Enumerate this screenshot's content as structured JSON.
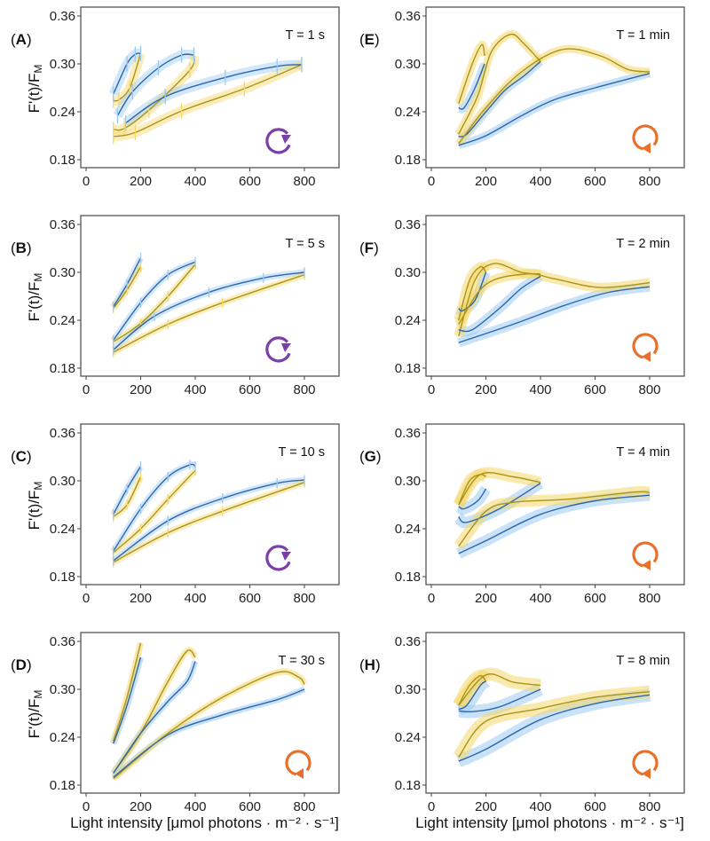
{
  "chart_data": [
    {
      "type": "line",
      "panel": "A",
      "title": "T = 1 s",
      "cycle_direction": "counterclockwise",
      "cycle_icon_color": "#7b3fa8",
      "uncertainty_style": "error-bars",
      "band": 0.006,
      "loops": [
        {
          "blue": [
            [
              100,
              0.262
            ],
            [
              150,
              0.3
            ],
            [
              180,
              0.312
            ],
            [
              200,
              0.313
            ]
          ],
          "yellow": [
            [
              100,
              0.254
            ],
            [
              120,
              0.255
            ],
            [
              160,
              0.27
            ],
            [
              200,
              0.313
            ]
          ]
        },
        {
          "blue": [
            [
              115,
              0.235
            ],
            [
              170,
              0.265
            ],
            [
              265,
              0.295
            ],
            [
              350,
              0.311
            ],
            [
              395,
              0.311
            ]
          ],
          "yellow": [
            [
              100,
              0.218
            ],
            [
              140,
              0.219
            ],
            [
              230,
              0.242
            ],
            [
              380,
              0.292
            ],
            [
              395,
              0.311
            ]
          ]
        },
        {
          "blue": [
            [
              145,
              0.226
            ],
            [
              290,
              0.259
            ],
            [
              510,
              0.283
            ],
            [
              700,
              0.297
            ],
            [
              790,
              0.299
            ]
          ],
          "yellow": [
            [
              100,
              0.209
            ],
            [
              180,
              0.214
            ],
            [
              350,
              0.241
            ],
            [
              580,
              0.269
            ],
            [
              790,
              0.299
            ]
          ]
        }
      ]
    },
    {
      "type": "line",
      "panel": "B",
      "title": "T = 5 s",
      "cycle_direction": "counterclockwise",
      "cycle_icon_color": "#7b3fa8",
      "uncertainty_style": "error-bars",
      "band": 0.004,
      "loops": [
        {
          "blue": [
            [
              100,
              0.257
            ],
            [
              150,
              0.285
            ],
            [
              200,
              0.318
            ]
          ],
          "yellow": [
            [
              100,
              0.255
            ],
            [
              150,
              0.278
            ],
            [
              200,
              0.307
            ]
          ]
        },
        {
          "blue": [
            [
              100,
              0.215
            ],
            [
              200,
              0.262
            ],
            [
              300,
              0.297
            ],
            [
              400,
              0.313
            ]
          ],
          "yellow": [
            [
              100,
              0.213
            ],
            [
              200,
              0.236
            ],
            [
              300,
              0.27
            ],
            [
              400,
              0.31
            ]
          ]
        },
        {
          "blue": [
            [
              100,
              0.203
            ],
            [
              250,
              0.245
            ],
            [
              450,
              0.275
            ],
            [
              650,
              0.293
            ],
            [
              800,
              0.3
            ]
          ],
          "yellow": [
            [
              100,
              0.2
            ],
            [
              300,
              0.235
            ],
            [
              500,
              0.262
            ],
            [
              800,
              0.297
            ]
          ]
        }
      ]
    },
    {
      "type": "line",
      "panel": "C",
      "title": "T = 10 s",
      "cycle_direction": "counterclockwise",
      "cycle_icon_color": "#7b3fa8",
      "uncertainty_style": "error-bars",
      "band": 0.004,
      "loops": [
        {
          "blue": [
            [
              100,
              0.258
            ],
            [
              150,
              0.29
            ],
            [
              200,
              0.318
            ]
          ],
          "yellow": [
            [
              100,
              0.255
            ],
            [
              150,
              0.27
            ],
            [
              200,
              0.305
            ]
          ]
        },
        {
          "blue": [
            [
              100,
              0.212
            ],
            [
              200,
              0.265
            ],
            [
              300,
              0.305
            ],
            [
              380,
              0.32
            ],
            [
              400,
              0.318
            ]
          ],
          "yellow": [
            [
              100,
              0.21
            ],
            [
              200,
              0.24
            ],
            [
              300,
              0.277
            ],
            [
              400,
              0.313
            ]
          ]
        },
        {
          "blue": [
            [
              100,
              0.2
            ],
            [
              300,
              0.25
            ],
            [
              500,
              0.278
            ],
            [
              700,
              0.297
            ],
            [
              800,
              0.301
            ]
          ],
          "yellow": [
            [
              100,
              0.198
            ],
            [
              300,
              0.235
            ],
            [
              500,
              0.262
            ],
            [
              800,
              0.298
            ]
          ]
        }
      ]
    },
    {
      "type": "line",
      "panel": "D",
      "title": "T = 30 s",
      "cycle_direction": "clockwise",
      "cycle_icon_color": "#e8702a",
      "uncertainty_style": "bands",
      "band": 0.004,
      "loops": [
        {
          "blue": [
            [
              100,
              0.232
            ],
            [
              150,
              0.28
            ],
            [
              200,
              0.34
            ]
          ],
          "yellow": [
            [
              100,
              0.235
            ],
            [
              150,
              0.29
            ],
            [
              200,
              0.358
            ]
          ]
        },
        {
          "blue": [
            [
              100,
              0.195
            ],
            [
              200,
              0.245
            ],
            [
              300,
              0.285
            ],
            [
              370,
              0.31
            ],
            [
              400,
              0.335
            ]
          ],
          "yellow": [
            [
              100,
              0.195
            ],
            [
              200,
              0.245
            ],
            [
              300,
              0.31
            ],
            [
              370,
              0.348
            ],
            [
              400,
              0.34
            ]
          ]
        },
        {
          "blue": [
            [
              100,
              0.19
            ],
            [
              300,
              0.243
            ],
            [
              500,
              0.268
            ],
            [
              700,
              0.287
            ],
            [
              800,
              0.3
            ]
          ],
          "yellow": [
            [
              100,
              0.188
            ],
            [
              300,
              0.245
            ],
            [
              500,
              0.29
            ],
            [
              700,
              0.321
            ],
            [
              780,
              0.315
            ],
            [
              800,
              0.306
            ]
          ]
        }
      ]
    },
    {
      "type": "line",
      "panel": "E",
      "title": "T = 1 min",
      "cycle_direction": "clockwise",
      "cycle_icon_color": "#e8702a",
      "uncertainty_style": "bands",
      "band": 0.005,
      "loops": [
        {
          "blue": [
            [
              100,
              0.245
            ],
            [
              120,
              0.245
            ],
            [
              160,
              0.27
            ],
            [
              195,
              0.3
            ]
          ],
          "yellow": [
            [
              100,
              0.25
            ],
            [
              150,
              0.3
            ],
            [
              185,
              0.324
            ],
            [
              195,
              0.31
            ]
          ]
        },
        {
          "blue": [
            [
              100,
              0.209
            ],
            [
              130,
              0.212
            ],
            [
              200,
              0.24
            ],
            [
              270,
              0.267
            ],
            [
              340,
              0.285
            ],
            [
              400,
              0.303
            ]
          ],
          "yellow": [
            [
              100,
              0.212
            ],
            [
              170,
              0.26
            ],
            [
              220,
              0.315
            ],
            [
              290,
              0.337
            ],
            [
              340,
              0.325
            ],
            [
              400,
              0.303
            ]
          ]
        },
        {
          "blue": [
            [
              100,
              0.198
            ],
            [
              200,
              0.21
            ],
            [
              330,
              0.235
            ],
            [
              450,
              0.255
            ],
            [
              600,
              0.27
            ],
            [
              800,
              0.288
            ]
          ],
          "yellow": [
            [
              100,
              0.2
            ],
            [
              200,
              0.245
            ],
            [
              330,
              0.29
            ],
            [
              480,
              0.318
            ],
            [
              620,
              0.31
            ],
            [
              720,
              0.293
            ],
            [
              800,
              0.29
            ]
          ]
        }
      ]
    },
    {
      "type": "line",
      "panel": "F",
      "title": "T = 2 min",
      "cycle_direction": "clockwise",
      "cycle_icon_color": "#e8702a",
      "uncertainty_style": "bands",
      "band": 0.006,
      "loops": [
        {
          "blue": [
            [
              100,
              0.255
            ],
            [
              115,
              0.252
            ],
            [
              160,
              0.265
            ],
            [
              200,
              0.3
            ]
          ],
          "yellow": [
            [
              100,
              0.24
            ],
            [
              140,
              0.29
            ],
            [
              180,
              0.307
            ],
            [
              200,
              0.3
            ]
          ]
        },
        {
          "blue": [
            [
              100,
              0.228
            ],
            [
              150,
              0.228
            ],
            [
              250,
              0.255
            ],
            [
              330,
              0.28
            ],
            [
              400,
              0.295
            ]
          ],
          "yellow": [
            [
              100,
              0.22
            ],
            [
              160,
              0.29
            ],
            [
              230,
              0.311
            ],
            [
              330,
              0.3
            ],
            [
              400,
              0.298
            ]
          ]
        },
        {
          "blue": [
            [
              100,
              0.212
            ],
            [
              300,
              0.235
            ],
            [
              500,
              0.26
            ],
            [
              650,
              0.275
            ],
            [
              800,
              0.282
            ]
          ],
          "yellow": [
            [
              100,
              0.235
            ],
            [
              200,
              0.285
            ],
            [
              350,
              0.298
            ],
            [
              450,
              0.292
            ],
            [
              620,
              0.281
            ],
            [
              800,
              0.287
            ]
          ]
        }
      ]
    },
    {
      "type": "line",
      "panel": "G",
      "title": "T = 4 min",
      "cycle_direction": "clockwise",
      "cycle_icon_color": "#e8702a",
      "uncertainty_style": "bands",
      "band": 0.007,
      "loops": [
        {
          "blue": [
            [
              100,
              0.268
            ],
            [
              120,
              0.265
            ],
            [
              170,
              0.275
            ],
            [
              200,
              0.29
            ]
          ],
          "yellow": [
            [
              100,
              0.27
            ],
            [
              140,
              0.3
            ],
            [
              180,
              0.308
            ],
            [
              200,
              0.305
            ]
          ]
        },
        {
          "blue": [
            [
              100,
              0.255
            ],
            [
              130,
              0.248
            ],
            [
              250,
              0.265
            ],
            [
              400,
              0.297
            ]
          ],
          "yellow": [
            [
              100,
              0.27
            ],
            [
              180,
              0.308
            ],
            [
              300,
              0.305
            ],
            [
              400,
              0.298
            ]
          ]
        },
        {
          "blue": [
            [
              100,
              0.209
            ],
            [
              200,
              0.225
            ],
            [
              400,
              0.258
            ],
            [
              600,
              0.275
            ],
            [
              800,
              0.282
            ]
          ],
          "yellow": [
            [
              100,
              0.218
            ],
            [
              200,
              0.262
            ],
            [
              300,
              0.273
            ],
            [
              500,
              0.277
            ],
            [
              750,
              0.286
            ],
            [
              800,
              0.285
            ]
          ]
        }
      ]
    },
    {
      "type": "line",
      "panel": "H",
      "title": "T = 8 min",
      "cycle_direction": "clockwise",
      "cycle_icon_color": "#e8702a",
      "uncertainty_style": "bands",
      "band": 0.008,
      "loops": [
        {
          "blue": [
            [
              100,
              0.275
            ],
            [
              130,
              0.28
            ],
            [
              180,
              0.305
            ],
            [
              200,
              0.31
            ]
          ],
          "yellow": [
            [
              100,
              0.28
            ],
            [
              140,
              0.305
            ],
            [
              180,
              0.317
            ],
            [
              200,
              0.31
            ]
          ]
        },
        {
          "blue": [
            [
              100,
              0.273
            ],
            [
              150,
              0.272
            ],
            [
              250,
              0.278
            ],
            [
              400,
              0.3
            ]
          ],
          "yellow": [
            [
              100,
              0.28
            ],
            [
              200,
              0.318
            ],
            [
              300,
              0.309
            ],
            [
              400,
              0.305
            ]
          ]
        },
        {
          "blue": [
            [
              100,
              0.21
            ],
            [
              200,
              0.225
            ],
            [
              400,
              0.262
            ],
            [
              600,
              0.282
            ],
            [
              800,
              0.293
            ]
          ],
          "yellow": [
            [
              100,
              0.215
            ],
            [
              200,
              0.26
            ],
            [
              400,
              0.276
            ],
            [
              600,
              0.29
            ],
            [
              800,
              0.297
            ]
          ]
        }
      ]
    }
  ],
  "axes": {
    "xlim": [
      -20,
      930
    ],
    "ylim": [
      0.17,
      0.371
    ],
    "xticks": [
      "0",
      "200",
      "400",
      "600",
      "800"
    ],
    "xtick_values": [
      0,
      200,
      400,
      600,
      800
    ],
    "yticks": [
      "0.36",
      "0.30",
      "0.24",
      "0.18"
    ],
    "ytick_values": [
      0.36,
      0.3,
      0.24,
      0.18
    ],
    "ylabel": "F'(t)/F",
    "ylabel_sub": "M",
    "xlabel": "Light intensity [μmol photons · m⁻² · s⁻¹]"
  },
  "colors": {
    "blue_line": "#2c66ad",
    "blue_band": "#9ccaf2",
    "yellow_line": "#a8951a",
    "yellow_band": "#f6d768",
    "frame": "#555555"
  }
}
